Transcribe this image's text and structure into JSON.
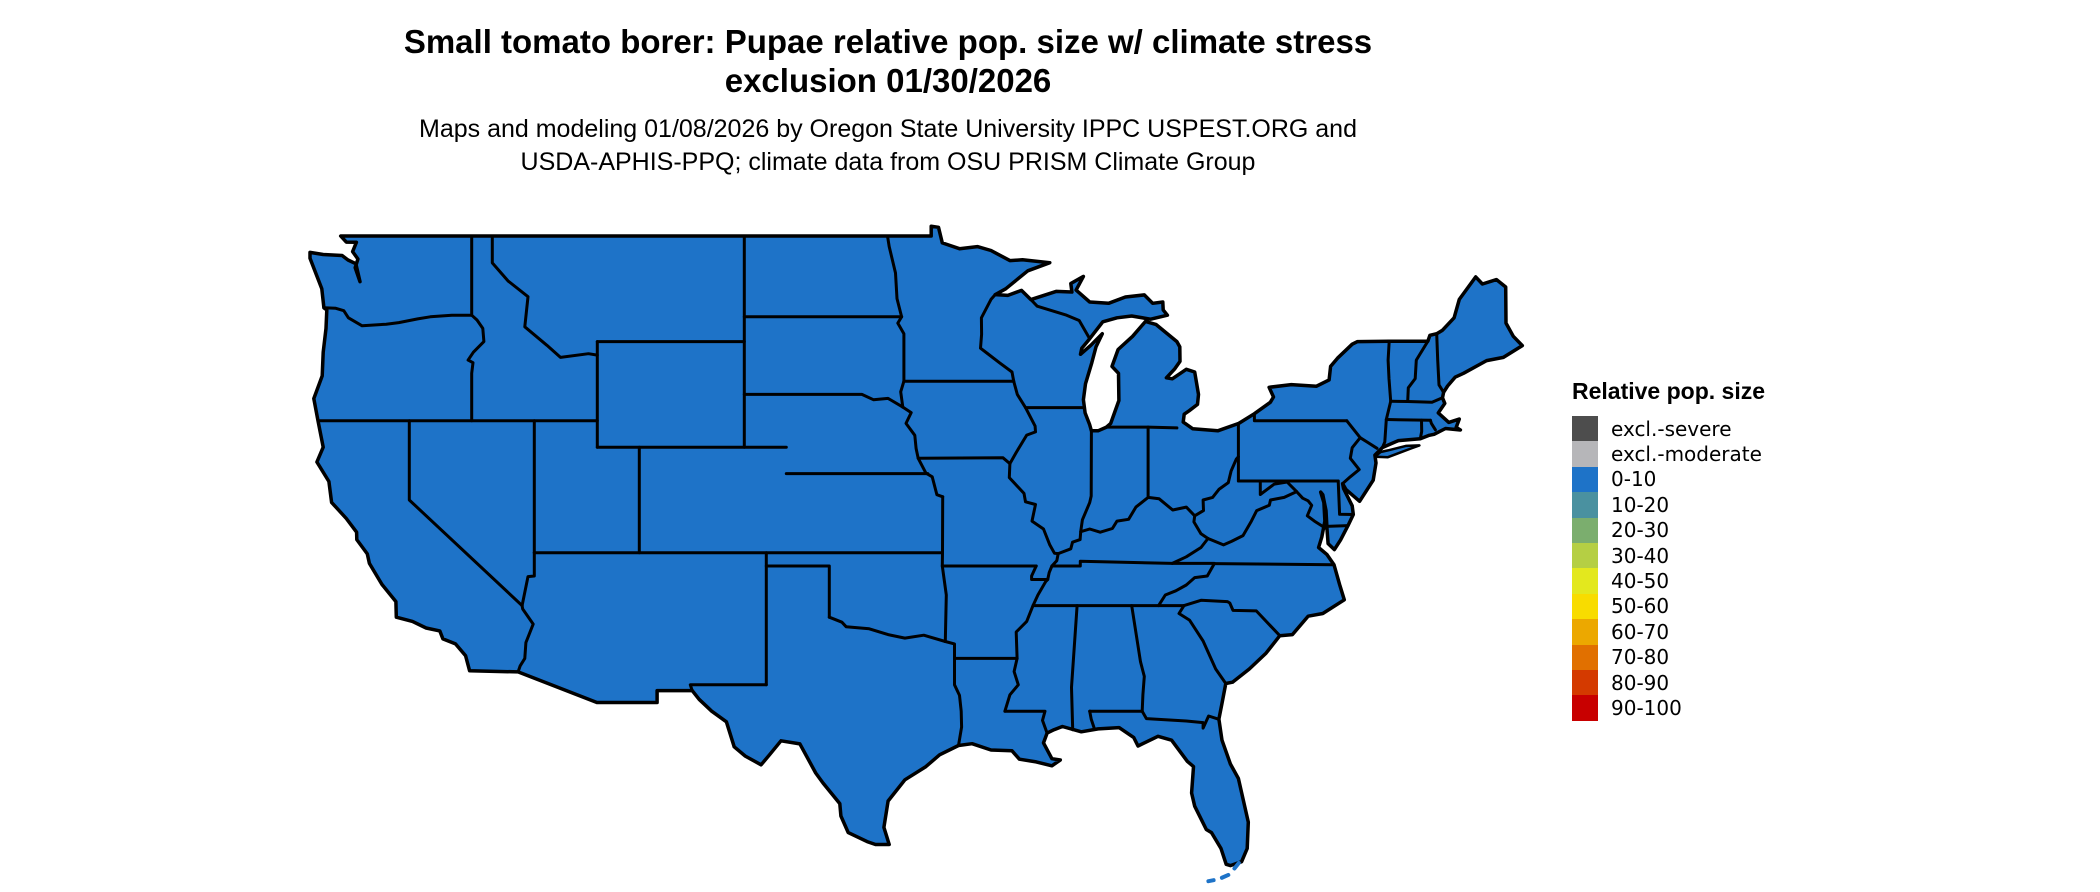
{
  "title": {
    "line1": "Small tomato borer: Pupae relative pop. size w/ climate stress",
    "line2": "exclusion 01/30/2026"
  },
  "subtitle": {
    "line1": "Maps and modeling 01/08/2026 by Oregon State University IPPC USPEST.ORG and",
    "line2": "USDA-APHIS-PPQ; climate data from OSU PRISM Climate Group"
  },
  "legend": {
    "title": "Relative pop. size",
    "items": [
      {
        "label": "excl.-severe",
        "color": "#4d4d4d"
      },
      {
        "label": "excl.-moderate",
        "color": "#b6b6b9"
      },
      {
        "label": "0-10",
        "color": "#1e73c8"
      },
      {
        "label": "10-20",
        "color": "#4a91a0"
      },
      {
        "label": "20-30",
        "color": "#7bae6e"
      },
      {
        "label": "30-40",
        "color": "#b5cf44"
      },
      {
        "label": "40-50",
        "color": "#e3e81e"
      },
      {
        "label": "50-60",
        "color": "#f8dc00"
      },
      {
        "label": "60-70",
        "color": "#eca800"
      },
      {
        "label": "70-80",
        "color": "#e17000"
      },
      {
        "label": "80-90",
        "color": "#d43a00"
      },
      {
        "label": "90-100",
        "color": "#c80000"
      }
    ]
  },
  "map": {
    "region": "Contiguous United States (state choropleth)",
    "fill_class": "0-10",
    "fill_color": "#1e73c8",
    "border_color": "#000000",
    "background": "#ffffff"
  }
}
